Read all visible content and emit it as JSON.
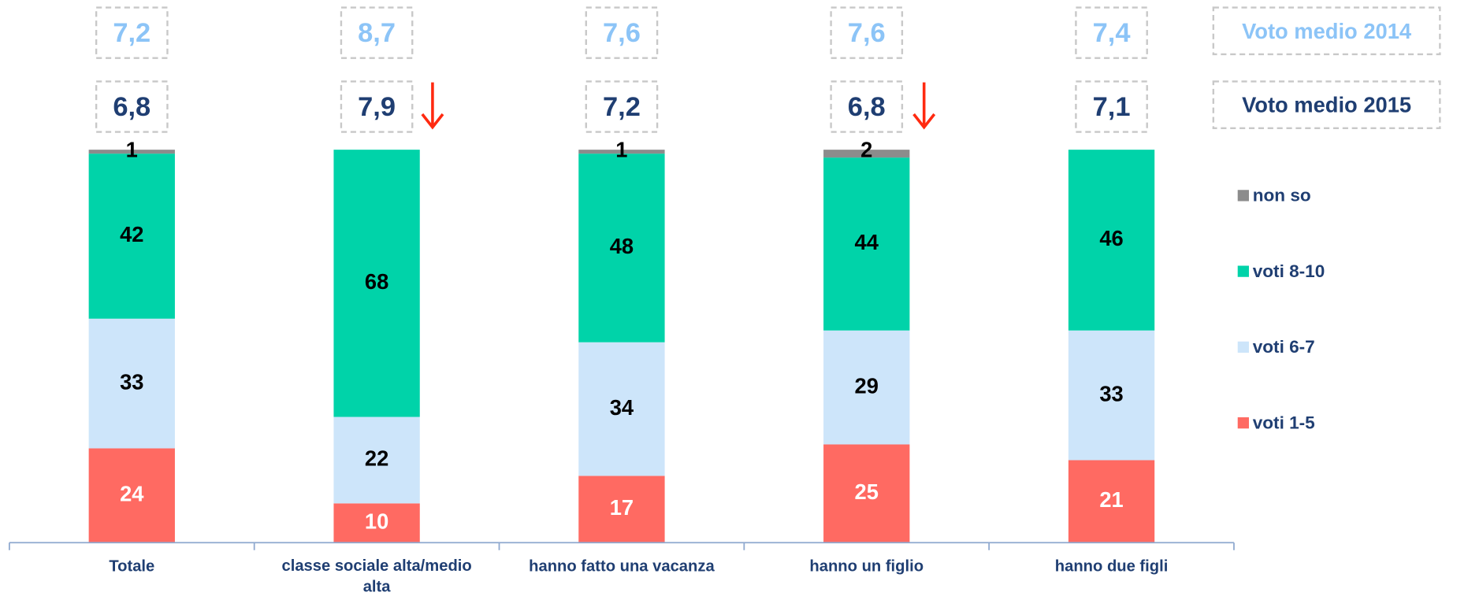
{
  "chart_data": {
    "type": "stacked_bar",
    "categories": [
      "Totale",
      "classe sociale alta/medio alta",
      "hanno fatto una vacanza",
      "hanno un figlio",
      "hanno due figli"
    ],
    "ylim": [
      0,
      100
    ],
    "series": [
      {
        "name": "voti 1-5",
        "color": "#ff6a62",
        "values": [
          24,
          10,
          17,
          25,
          21
        ]
      },
      {
        "name": "voti 6-7",
        "color": "#cde5fa",
        "values": [
          33,
          22,
          34,
          29,
          33
        ]
      },
      {
        "name": "voti 8-10",
        "color": "#00d3a9",
        "values": [
          42,
          68,
          48,
          44,
          46
        ]
      },
      {
        "name": "non so",
        "color": "#8c8c8c",
        "values": [
          1,
          null,
          1,
          2,
          null
        ]
      }
    ],
    "averages": [
      {
        "name": "Voto medio 2014",
        "color": "#8cc4f7",
        "values": [
          7.2,
          8.7,
          7.6,
          7.6,
          7.4
        ],
        "value_labels": [
          "7,2",
          "8,7",
          "7,6",
          "7,6",
          "7,4"
        ]
      },
      {
        "name": "Voto medio 2015",
        "color": "#1f3e72",
        "values": [
          6.8,
          7.9,
          7.2,
          6.8,
          7.1
        ],
        "value_labels": [
          "6,8",
          "7,9",
          "7,2",
          "6,8",
          "7,1"
        ]
      }
    ]
  }
}
